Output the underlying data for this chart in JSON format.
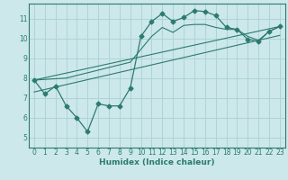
{
  "bg_color": "#cce8ea",
  "grid_color": "#aed4d8",
  "line_color": "#2d7a70",
  "xlabel": "Humidex (Indice chaleur)",
  "xlim": [
    -0.5,
    23.5
  ],
  "ylim": [
    4.5,
    11.75
  ],
  "yticks": [
    5,
    6,
    7,
    8,
    9,
    10,
    11
  ],
  "xticks": [
    0,
    1,
    2,
    3,
    4,
    5,
    6,
    7,
    8,
    9,
    10,
    11,
    12,
    13,
    14,
    15,
    16,
    17,
    18,
    19,
    20,
    21,
    22,
    23
  ],
  "line1_x": [
    0,
    1,
    2,
    3,
    4,
    5,
    6,
    7,
    8,
    9,
    10,
    11,
    12,
    13,
    14,
    15,
    16,
    17,
    18,
    19,
    20,
    21,
    22,
    23
  ],
  "line1_y": [
    7.9,
    7.2,
    7.6,
    6.6,
    6.0,
    5.3,
    6.7,
    6.6,
    6.6,
    7.5,
    10.1,
    10.85,
    11.25,
    10.85,
    11.05,
    11.4,
    11.35,
    11.15,
    10.55,
    10.45,
    9.95,
    9.85,
    10.35,
    10.6
  ],
  "line2_x": [
    0,
    3,
    9,
    11,
    12,
    13,
    14,
    15,
    16,
    17,
    18,
    19,
    20,
    21,
    22,
    23
  ],
  "line2_y": [
    7.9,
    8.0,
    8.8,
    10.1,
    10.55,
    10.3,
    10.65,
    10.7,
    10.7,
    10.55,
    10.45,
    10.45,
    10.1,
    9.9,
    10.35,
    10.6
  ],
  "line3_x": [
    0,
    23
  ],
  "line3_y": [
    7.9,
    10.6
  ],
  "line4_x": [
    0,
    23
  ],
  "line4_y": [
    7.3,
    10.15
  ]
}
